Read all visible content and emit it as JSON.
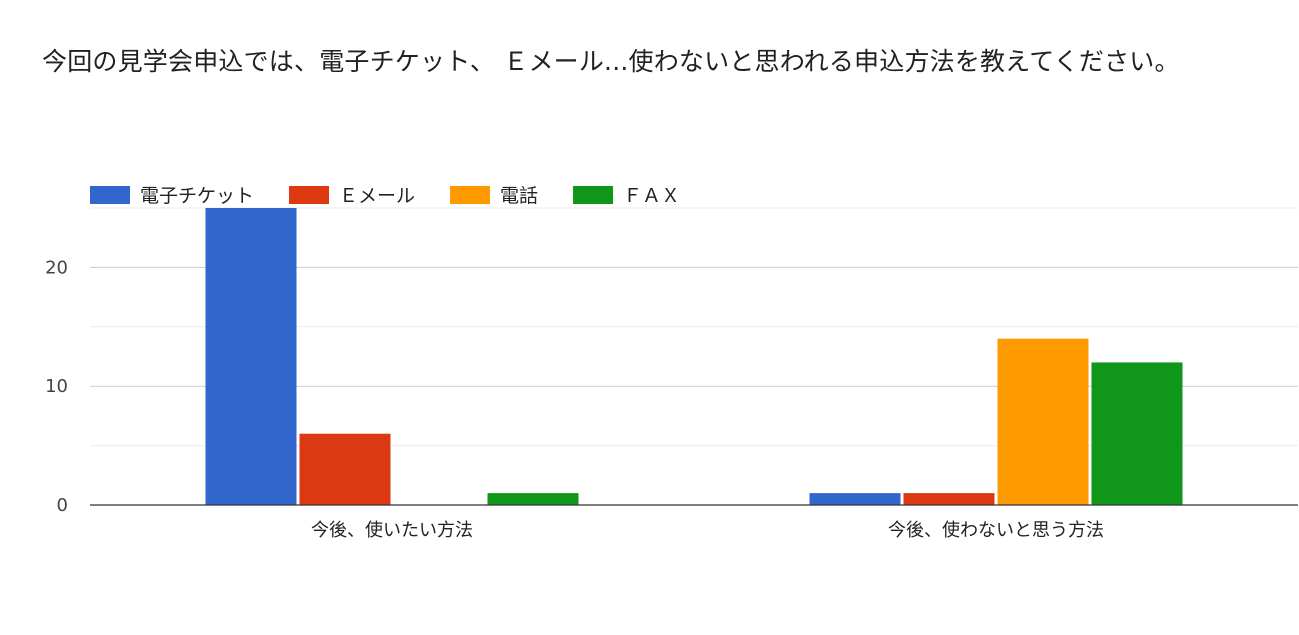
{
  "chart_data": {
    "type": "bar",
    "title": "今回の見学会申込では、電子チケット、 Ｅメール...使わないと思われる申込方法を教えてください。",
    "categories": [
      "今後、使いたい方法",
      "今後、使わないと思う方法"
    ],
    "series": [
      {
        "name": "電子チケット",
        "color": "#3366cc",
        "values": [
          25,
          1
        ]
      },
      {
        "name": "Ｅメール",
        "color": "#dc3912",
        "values": [
          6,
          1
        ]
      },
      {
        "name": "電話",
        "color": "#ff9900",
        "values": [
          0,
          14
        ]
      },
      {
        "name": "ＦＡＸ",
        "color": "#109618",
        "values": [
          1,
          12
        ]
      }
    ],
    "ylim": [
      0,
      25
    ],
    "yticks": [
      0,
      10,
      20
    ],
    "gridlines": [
      0,
      5,
      10,
      15,
      20,
      25
    ],
    "legend_position": "top-left",
    "xlabel": "",
    "ylabel": ""
  }
}
